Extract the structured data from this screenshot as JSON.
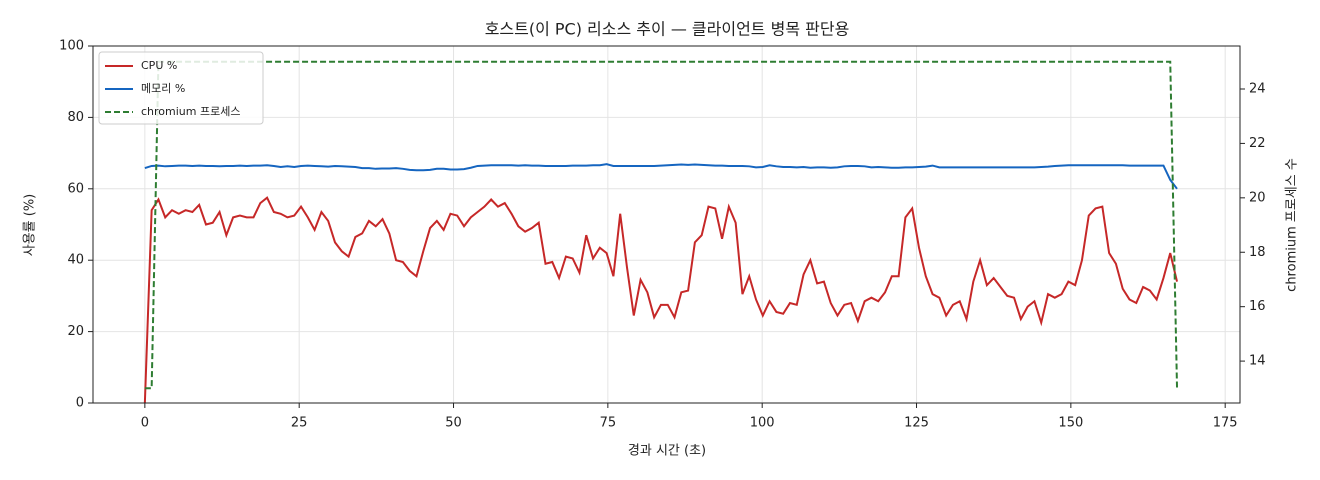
{
  "chart_data": {
    "type": "line",
    "title": "호스트(이 PC) 리소스 추이 — 클라이언트 병목 판단용",
    "x_label": "경과 시간 (초)",
    "y_label": "사용률 (%)",
    "y2_label": "chromium 프로세스 수",
    "x": [
      0,
      1.1,
      2.2,
      3.3,
      4.4,
      5.5,
      6.6,
      7.7,
      8.8,
      9.9,
      11,
      12.1,
      13.2,
      14.3,
      15.4,
      16.5,
      17.6,
      18.7,
      19.8,
      20.9,
      22,
      23.1,
      24.2,
      25.3,
      26.4,
      27.5,
      28.6,
      29.7,
      30.8,
      31.9,
      33,
      34.1,
      35.2,
      36.3,
      37.4,
      38.5,
      39.6,
      40.7,
      41.8,
      42.9,
      44,
      45.1,
      46.2,
      47.3,
      48.4,
      49.5,
      50.6,
      51.7,
      52.8,
      53.9,
      55,
      56.1,
      57.2,
      58.3,
      59.4,
      60.5,
      61.6,
      62.7,
      63.8,
      64.9,
      66,
      67.1,
      68.2,
      69.3,
      70.4,
      71.5,
      72.6,
      73.7,
      74.8,
      75.9,
      77,
      78.1,
      79.2,
      80.3,
      81.4,
      82.5,
      83.6,
      84.7,
      85.8,
      86.9,
      88,
      89.1,
      90.2,
      91.3,
      92.4,
      93.5,
      94.6,
      95.7,
      96.8,
      97.9,
      99,
      100.1,
      101.2,
      102.3,
      103.4,
      104.5,
      105.6,
      106.7,
      107.8,
      108.9,
      110,
      111.1,
      112.2,
      113.3,
      114.4,
      115.5,
      116.6,
      117.7,
      118.8,
      119.9,
      121,
      122.1,
      123.2,
      124.3,
      125.4,
      126.5,
      127.6,
      128.7,
      129.8,
      130.9,
      132,
      133.1,
      134.2,
      135.3,
      136.4,
      137.5,
      138.6,
      139.7,
      140.8,
      141.9,
      143,
      144.1,
      145.2,
      146.3,
      147.4,
      148.5,
      149.6,
      150.7,
      151.8,
      152.9,
      154,
      155.1,
      156.2,
      157.3,
      158.4,
      159.5,
      160.6,
      161.7,
      162.8,
      163.9,
      165,
      166.1,
      167.2
    ],
    "series": [
      {
        "name": "CPU %",
        "color": "#c62828",
        "axis": "y",
        "dashed": false,
        "values": [
          0,
          54,
          57,
          52,
          54,
          53,
          54,
          53.5,
          55.5,
          50,
          50.5,
          53.5,
          47,
          52,
          52.5,
          52,
          52,
          56,
          57.5,
          53.5,
          53,
          52,
          52.5,
          55,
          52,
          48.5,
          53.5,
          51,
          45,
          42.5,
          41,
          46.5,
          47.5,
          51,
          49.5,
          51.5,
          47.5,
          40,
          39.5,
          37,
          35.5,
          42.5,
          49,
          51,
          48.5,
          53,
          52.5,
          49.5,
          52,
          53.5,
          55,
          57,
          55,
          56,
          53,
          49.5,
          48,
          49,
          50.5,
          39,
          39.5,
          35,
          41,
          40.5,
          36.5,
          47,
          40.5,
          43.5,
          42,
          35.5,
          53,
          38,
          24.5,
          34.5,
          31,
          24,
          27.5,
          27.5,
          24,
          31,
          31.5,
          45,
          47,
          55,
          54.5,
          46,
          55,
          50.5,
          30.5,
          35.5,
          29,
          24.5,
          28.5,
          25.5,
          25,
          28,
          27.5,
          36,
          40,
          33.5,
          34,
          28,
          24.5,
          27.5,
          28,
          23,
          28.5,
          29.5,
          28.5,
          31,
          35.5,
          35.5,
          52,
          54.5,
          43.5,
          35.5,
          30.5,
          29.5,
          24.5,
          27.5,
          28.5,
          23.5,
          34,
          40,
          33,
          35,
          32.5,
          30,
          29.5,
          23.5,
          27,
          28.5,
          22.5,
          30.5,
          29.5,
          30.5,
          34,
          33,
          40,
          52.5,
          54.5,
          55,
          42,
          39,
          32,
          29,
          28,
          32.5,
          31.5,
          29,
          35,
          42,
          34
        ]
      },
      {
        "name": "메모리 %",
        "color": "#1565c0",
        "axis": "y",
        "dashed": false,
        "values": [
          65.8,
          66.4,
          66.5,
          66.3,
          66.4,
          66.5,
          66.5,
          66.4,
          66.5,
          66.4,
          66.4,
          66.3,
          66.4,
          66.4,
          66.5,
          66.4,
          66.5,
          66.5,
          66.6,
          66.4,
          66.1,
          66.3,
          66.1,
          66.4,
          66.5,
          66.4,
          66.3,
          66.2,
          66.4,
          66.3,
          66.2,
          66.1,
          65.8,
          65.8,
          65.6,
          65.7,
          65.7,
          65.8,
          65.6,
          65.3,
          65.2,
          65.2,
          65.3,
          65.6,
          65.6,
          65.4,
          65.4,
          65.5,
          65.9,
          66.4,
          66.5,
          66.6,
          66.6,
          66.6,
          66.6,
          66.5,
          66.6,
          66.5,
          66.5,
          66.4,
          66.4,
          66.4,
          66.4,
          66.5,
          66.5,
          66.5,
          66.6,
          66.6,
          66.9,
          66.4,
          66.4,
          66.4,
          66.4,
          66.4,
          66.4,
          66.4,
          66.5,
          66.6,
          66.7,
          66.8,
          66.7,
          66.8,
          66.7,
          66.6,
          66.5,
          66.5,
          66.4,
          66.4,
          66.4,
          66.3,
          66.0,
          66.1,
          66.6,
          66.3,
          66.1,
          66.1,
          66.0,
          66.1,
          65.9,
          66.0,
          66.0,
          65.9,
          66.0,
          66.3,
          66.4,
          66.4,
          66.3,
          66.0,
          66.1,
          66.0,
          65.9,
          65.9,
          66.0,
          66.0,
          66.1,
          66.2,
          66.5,
          66.0,
          66.0,
          66.0,
          66.0,
          66.0,
          66.0,
          66.0,
          66.0,
          66.0,
          66.0,
          66.0,
          66.0,
          66.0,
          66.0,
          66.0,
          66.1,
          66.2,
          66.4,
          66.5,
          66.6,
          66.6,
          66.6,
          66.6,
          66.6,
          66.6,
          66.6,
          66.6,
          66.6,
          66.5,
          66.5,
          66.5,
          66.5,
          66.5,
          66.5,
          62.5,
          60.0
        ]
      },
      {
        "name": "chromium 프로세스",
        "color": "#2e7d32",
        "axis": "y2",
        "dashed": true,
        "values": [
          13,
          13,
          25,
          25,
          25,
          25,
          25,
          25,
          25,
          25,
          25,
          25,
          25,
          25,
          25,
          25,
          25,
          25,
          25,
          25,
          25,
          25,
          25,
          25,
          25,
          25,
          25,
          25,
          25,
          25,
          25,
          25,
          25,
          25,
          25,
          25,
          25,
          25,
          25,
          25,
          25,
          25,
          25,
          25,
          25,
          25,
          25,
          25,
          25,
          25,
          25,
          25,
          25,
          25,
          25,
          25,
          25,
          25,
          25,
          25,
          25,
          25,
          25,
          25,
          25,
          25,
          25,
          25,
          25,
          25,
          25,
          25,
          25,
          25,
          25,
          25,
          25,
          25,
          25,
          25,
          25,
          25,
          25,
          25,
          25,
          25,
          25,
          25,
          25,
          25,
          25,
          25,
          25,
          25,
          25,
          25,
          25,
          25,
          25,
          25,
          25,
          25,
          25,
          25,
          25,
          25,
          25,
          25,
          25,
          25,
          25,
          25,
          25,
          25,
          25,
          25,
          25,
          25,
          25,
          25,
          25,
          25,
          25,
          25,
          25,
          25,
          25,
          25,
          25,
          25,
          25,
          25,
          25,
          25,
          25,
          25,
          25,
          25,
          25,
          25,
          25,
          25,
          25,
          25,
          25,
          25,
          25,
          25,
          25,
          25,
          25,
          25,
          13
        ]
      }
    ],
    "xlim": [
      -8.4,
      177.4
    ],
    "xticks": [
      0,
      25,
      50,
      75,
      100,
      125,
      150,
      175
    ],
    "ylim": [
      0,
      100
    ],
    "yticks": [
      0,
      20,
      40,
      60,
      80,
      100
    ],
    "y2lim": [
      12.46,
      25.58
    ],
    "y2ticks": [
      14,
      16,
      18,
      20,
      22,
      24
    ],
    "grid": true,
    "legend": "upper-left"
  }
}
